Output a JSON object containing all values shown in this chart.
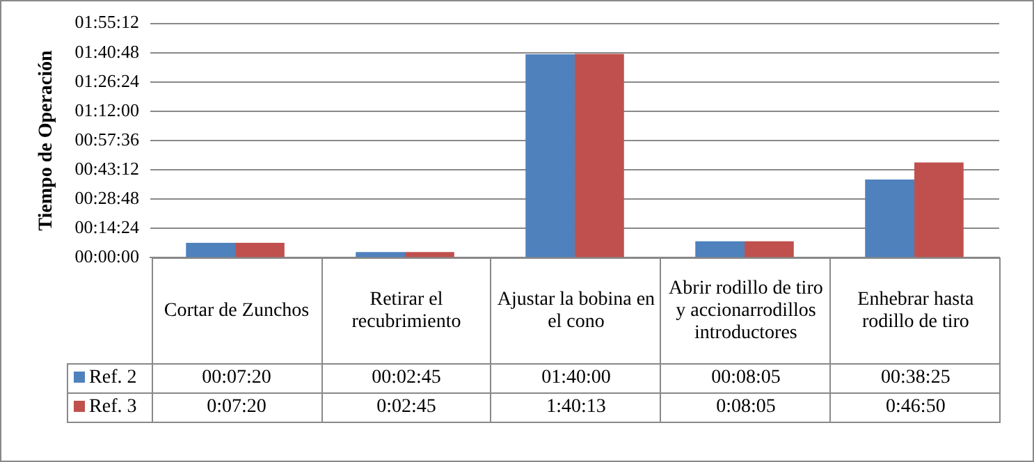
{
  "chart_data": {
    "type": "bar",
    "ylabel": "Tiempo de Operación",
    "categories": [
      "Cortar de Zunchos",
      "Retirar el recubrimiento",
      "Ajustar la bobina en el cono",
      "Abrir rodillo de tiro y accionarrodillos introductores",
      "Enhebrar hasta rodillo de tiro"
    ],
    "series": [
      {
        "name": "Ref. 2",
        "color": "#4f81bd",
        "values": [
          440,
          165,
          6000,
          485,
          2305
        ],
        "value_labels": [
          "00:07:20",
          "00:02:45",
          "01:40:00",
          "00:08:05",
          "00:38:25"
        ]
      },
      {
        "name": "Ref. 3",
        "color": "#c0504d",
        "values": [
          440,
          165,
          6013,
          485,
          2810
        ],
        "value_labels": [
          "0:07:20",
          "0:02:45",
          "1:40:13",
          "0:08:05",
          "0:46:50"
        ]
      }
    ],
    "ylim": [
      0,
      6912
    ],
    "yticks": [
      {
        "value": 0,
        "label": "00:00:00"
      },
      {
        "value": 864,
        "label": "00:14:24"
      },
      {
        "value": 1728,
        "label": "00:28:48"
      },
      {
        "value": 2592,
        "label": "00:43:12"
      },
      {
        "value": 3456,
        "label": "00:57:36"
      },
      {
        "value": 4320,
        "label": "01:12:00"
      },
      {
        "value": 5184,
        "label": "01:26:24"
      },
      {
        "value": 6048,
        "label": "01:40:48"
      },
      {
        "value": 6912,
        "label": "01:55:12"
      }
    ],
    "grid": "y",
    "legend": "bottom"
  }
}
